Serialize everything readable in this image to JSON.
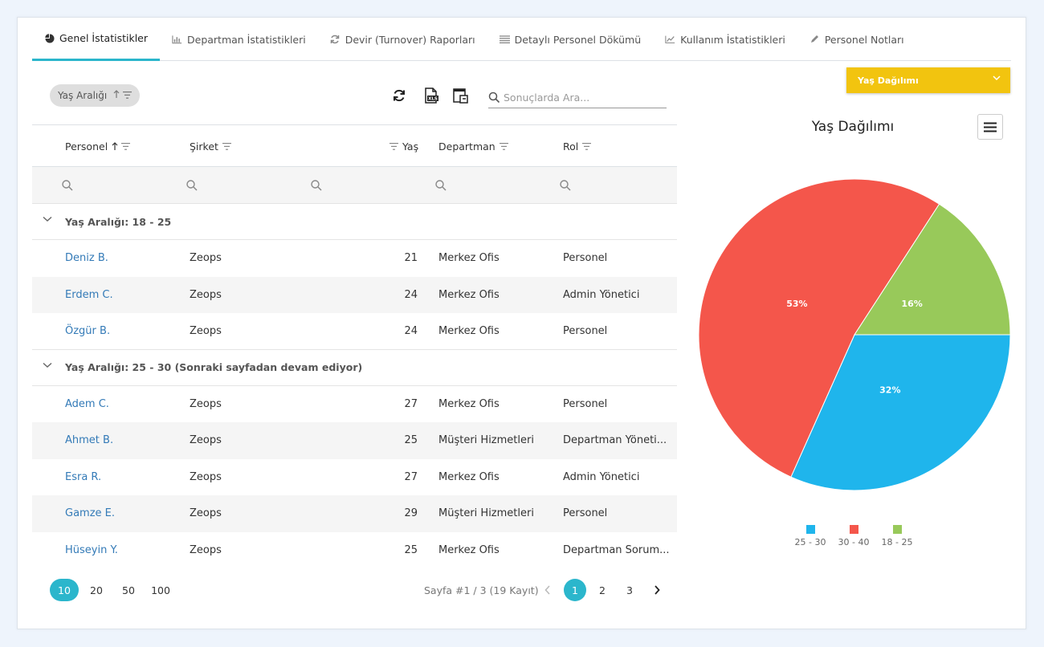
{
  "tabs": [
    {
      "label": "Genel İstatistikler",
      "icon": "pie-chart-icon",
      "active": true
    },
    {
      "label": "Departman İstatistikleri",
      "icon": "bar-chart-icon",
      "active": false
    },
    {
      "label": "Devir (Turnover) Raporları",
      "icon": "refresh-icon",
      "active": false
    },
    {
      "label": "Detaylı Personel Dökümü",
      "icon": "list-icon",
      "active": false
    },
    {
      "label": "Kullanım İstatistikleri",
      "icon": "line-chart-icon",
      "active": false
    },
    {
      "label": "Personel Notları",
      "icon": "pencil-icon",
      "active": false
    }
  ],
  "group_chip": {
    "label": "Yaş Aralığı"
  },
  "search": {
    "placeholder": "Sonuçlarda Ara..."
  },
  "columns": {
    "personel": "Personel",
    "sirket": "Şirket",
    "yas": "Yaş",
    "departman": "Departman",
    "rol": "Rol"
  },
  "groups": [
    {
      "label": "Yaş Aralığı: 18 - 25",
      "rows": [
        {
          "name": "Deniz B.",
          "company": "Zeops",
          "age": "21",
          "department": "Merkez Ofis",
          "role": "Personel"
        },
        {
          "name": "Erdem C.",
          "company": "Zeops",
          "age": "24",
          "department": "Merkez Ofis",
          "role": "Admin Yönetici"
        },
        {
          "name": "Özgür B.",
          "company": "Zeops",
          "age": "24",
          "department": "Merkez Ofis",
          "role": "Personel"
        }
      ]
    },
    {
      "label": "Yaş Aralığı: 25 - 30 (Sonraki sayfadan devam ediyor)",
      "rows": [
        {
          "name": "Adem C.",
          "company": "Zeops",
          "age": "27",
          "department": "Merkez Ofis",
          "role": "Personel"
        },
        {
          "name": "Ahmet B.",
          "company": "Zeops",
          "age": "25",
          "department": "Müşteri Hizmetleri",
          "role": "Departman Yöneti..."
        },
        {
          "name": "Esra R.",
          "company": "Zeops",
          "age": "27",
          "department": "Merkez Ofis",
          "role": "Admin Yönetici"
        },
        {
          "name": "Gamze E.",
          "company": "Zeops",
          "age": "29",
          "department": "Müşteri Hizmetleri",
          "role": "Personel"
        },
        {
          "name": "Hüseyin Y.",
          "company": "Zeops",
          "age": "25",
          "department": "Merkez Ofis",
          "role": "Departman Sorum..."
        }
      ]
    }
  ],
  "pager": {
    "sizes": [
      "10",
      "20",
      "50",
      "100"
    ],
    "active_size": "10",
    "info": "Sayfa #1 / 3 (19 Kayıt)",
    "pages": [
      "1",
      "2",
      "3"
    ],
    "active_page": "1"
  },
  "chart_selector": {
    "label": "Yaş Dağılımı"
  },
  "chart_data": {
    "type": "pie",
    "title": "Yaş Dağılımı",
    "slices": [
      {
        "label": "25 - 30",
        "value": 32,
        "display": "32%",
        "color": "#1fb5ec"
      },
      {
        "label": "30 - 40",
        "value": 53,
        "display": "53%",
        "color": "#f4564b"
      },
      {
        "label": "18 - 25",
        "value": 16,
        "display": "16%",
        "color": "#98c95a"
      }
    ],
    "legend_position": "bottom"
  },
  "colors": {
    "accent": "#2bb6cc",
    "link": "#337ab7",
    "selector": "#f2c40f"
  }
}
